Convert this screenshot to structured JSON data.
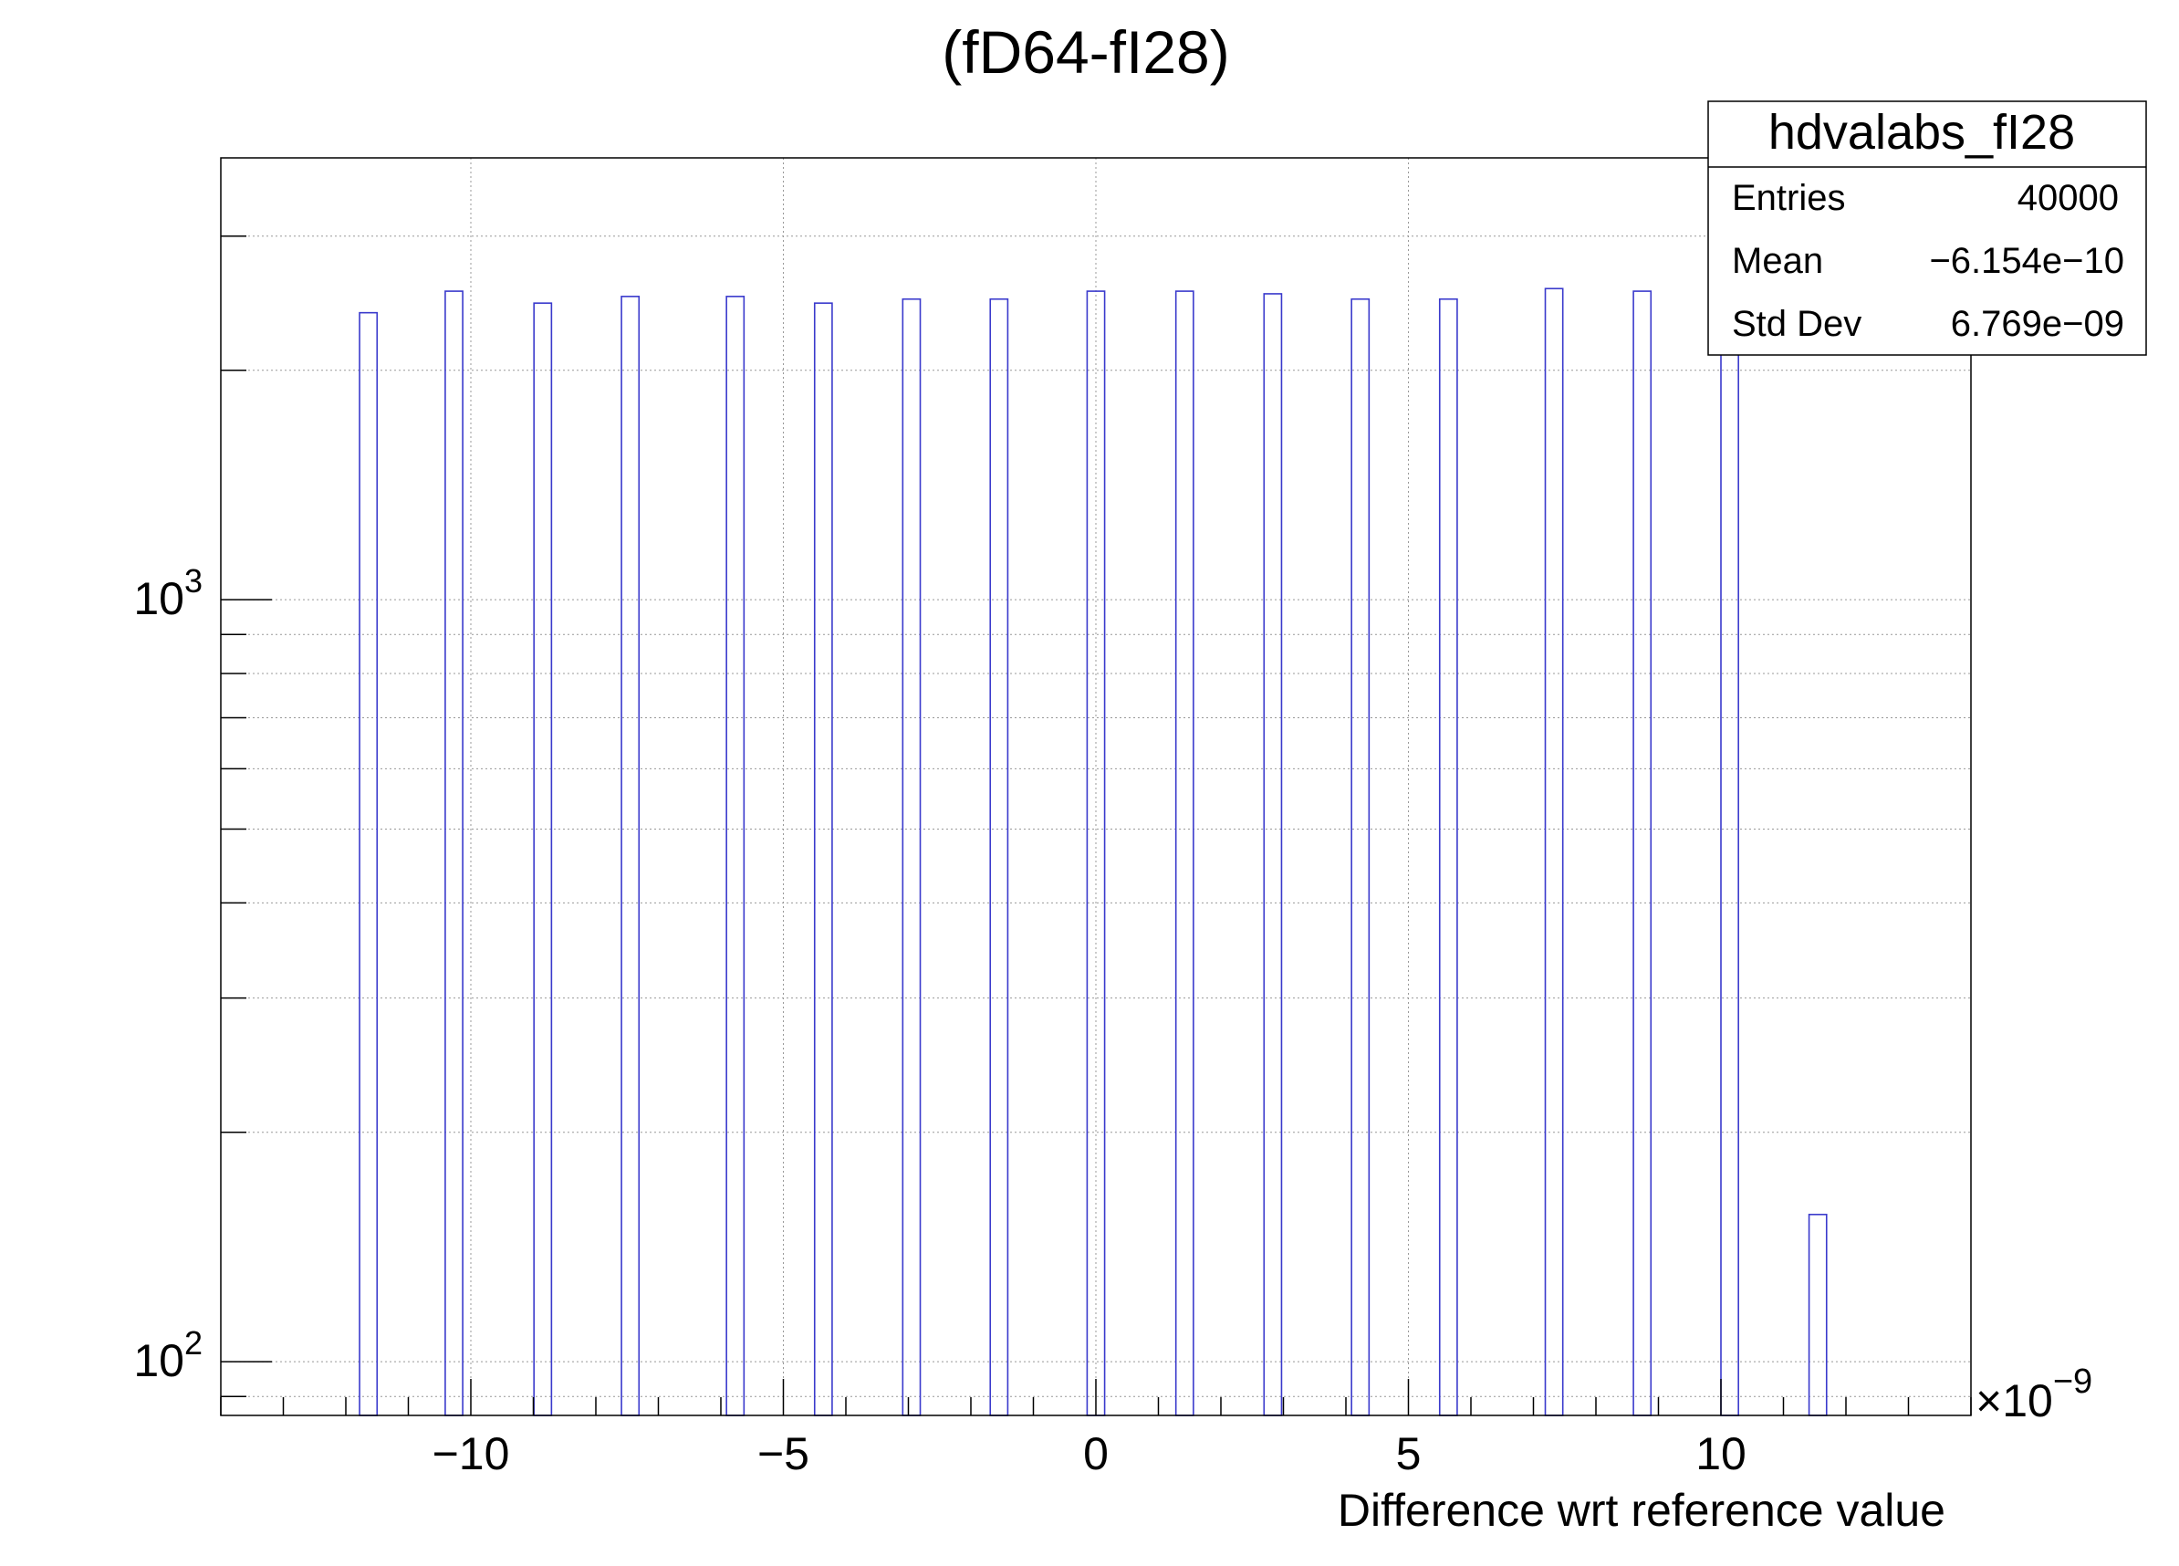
{
  "chart_data": {
    "type": "bar",
    "title": "(fD64-fI28)",
    "xlabel": "Difference wrt reference value",
    "ylabel": "",
    "x_exponent_label": "×10",
    "x_exponent_power": "−9",
    "x_scale_factor": 1e-09,
    "xlim": [
      -14.0,
      14.0
    ],
    "ylim": [
      85,
      3800
    ],
    "y_scale": "log",
    "grid": true,
    "x_ticks": [
      {
        "value": -10,
        "label": "−10"
      },
      {
        "value": -5,
        "label": "−5"
      },
      {
        "value": 0,
        "label": "0"
      },
      {
        "value": 5,
        "label": "5"
      },
      {
        "value": 10,
        "label": "10"
      }
    ],
    "y_ticks": [
      {
        "value": 100,
        "base": "10",
        "exp": "2"
      },
      {
        "value": 1000,
        "base": "10",
        "exp": "3"
      }
    ],
    "bin_width": 0.28,
    "line_color": "#3a3acc",
    "bins": [
      {
        "x": -11.64,
        "count": 2380
      },
      {
        "x": -10.27,
        "count": 2540
      },
      {
        "x": -8.85,
        "count": 2450
      },
      {
        "x": -7.45,
        "count": 2500
      },
      {
        "x": -5.77,
        "count": 2500
      },
      {
        "x": -4.36,
        "count": 2450
      },
      {
        "x": -2.95,
        "count": 2480
      },
      {
        "x": -1.55,
        "count": 2480
      },
      {
        "x": 0.0,
        "count": 2540
      },
      {
        "x": 1.42,
        "count": 2540
      },
      {
        "x": 2.83,
        "count": 2520
      },
      {
        "x": 4.23,
        "count": 2480
      },
      {
        "x": 5.64,
        "count": 2480
      },
      {
        "x": 7.33,
        "count": 2560
      },
      {
        "x": 8.74,
        "count": 2540
      },
      {
        "x": 10.14,
        "count": 2540
      },
      {
        "x": 11.55,
        "count": 156
      }
    ],
    "stats_box": {
      "name": "hdvalabs_fI28",
      "rows": [
        {
          "label": "Entries",
          "value": "40000"
        },
        {
          "label": "Mean",
          "value": "−6.154e−10"
        },
        {
          "label": "Std Dev",
          "value": "6.769e−09"
        }
      ]
    }
  }
}
